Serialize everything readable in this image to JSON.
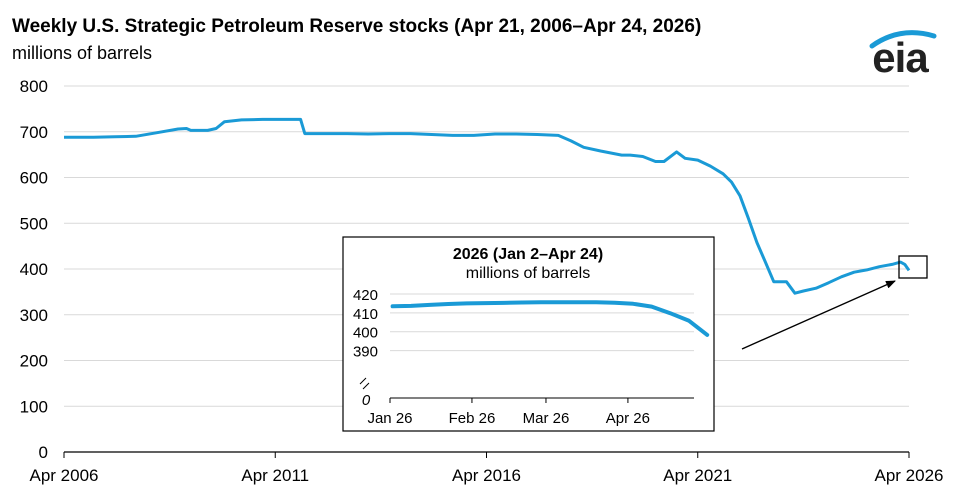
{
  "header": {
    "title": "Weekly U.S. Strategic Petroleum Reserve stocks (Apr 21, 2006–Apr 24, 2026)",
    "subtitle": "millions of barrels",
    "logo_text": "eia"
  },
  "colors": {
    "line": "#1a9ad6",
    "grid": "#d9d9d9",
    "axis": "#000000",
    "text": "#000000",
    "logo_arc": "#1a9ad6"
  },
  "chart_data": [
    {
      "type": "line",
      "title": "Weekly U.S. Strategic Petroleum Reserve stocks (Apr 21, 2006–Apr 24, 2026)",
      "ylabel": "millions of barrels",
      "ylim": [
        0,
        800
      ],
      "yticks": [
        0,
        100,
        200,
        300,
        400,
        500,
        600,
        700,
        800
      ],
      "xlim": [
        2006.3,
        2026.3
      ],
      "xticks": [
        {
          "value": 2006.3,
          "label": "Apr 2006"
        },
        {
          "value": 2011.3,
          "label": "Apr 2011"
        },
        {
          "value": 2016.3,
          "label": "Apr 2016"
        },
        {
          "value": 2021.3,
          "label": "Apr 2021"
        },
        {
          "value": 2026.3,
          "label": "Apr 2026"
        }
      ],
      "grid": true,
      "series": [
        {
          "points": [
            [
              2006.3,
              688
            ],
            [
              2007.0,
              688
            ],
            [
              2007.5,
              689
            ],
            [
              2008.0,
              690
            ],
            [
              2008.5,
              698
            ],
            [
              2009.0,
              706
            ],
            [
              2009.2,
              707
            ],
            [
              2009.3,
              703
            ],
            [
              2009.7,
              703
            ],
            [
              2009.9,
              707
            ],
            [
              2010.1,
              722
            ],
            [
              2010.5,
              726
            ],
            [
              2011.0,
              727
            ],
            [
              2011.6,
              727
            ],
            [
              2011.9,
              727
            ],
            [
              2012.0,
              696
            ],
            [
              2012.5,
              696
            ],
            [
              2013.0,
              696
            ],
            [
              2013.5,
              695
            ],
            [
              2014.0,
              696
            ],
            [
              2014.5,
              696
            ],
            [
              2015.0,
              694
            ],
            [
              2015.5,
              692
            ],
            [
              2016.0,
              692
            ],
            [
              2016.5,
              695
            ],
            [
              2017.0,
              695
            ],
            [
              2017.5,
              694
            ],
            [
              2018.0,
              692
            ],
            [
              2018.3,
              680
            ],
            [
              2018.6,
              666
            ],
            [
              2019.0,
              658
            ],
            [
              2019.5,
              649
            ],
            [
              2019.7,
              649
            ],
            [
              2020.0,
              646
            ],
            [
              2020.3,
              635
            ],
            [
              2020.5,
              635
            ],
            [
              2020.8,
              656
            ],
            [
              2021.0,
              642
            ],
            [
              2021.3,
              638
            ],
            [
              2021.6,
              625
            ],
            [
              2021.9,
              608
            ],
            [
              2022.1,
              590
            ],
            [
              2022.3,
              560
            ],
            [
              2022.5,
              510
            ],
            [
              2022.7,
              458
            ],
            [
              2022.9,
              415
            ],
            [
              2023.1,
              372
            ],
            [
              2023.4,
              372
            ],
            [
              2023.6,
              347
            ],
            [
              2023.8,
              352
            ],
            [
              2024.1,
              358
            ],
            [
              2024.4,
              370
            ],
            [
              2024.7,
              383
            ],
            [
              2025.0,
              393
            ],
            [
              2025.3,
              398
            ],
            [
              2025.6,
              405
            ],
            [
              2025.9,
              410
            ],
            [
              2026.1,
              415
            ],
            [
              2026.2,
              410
            ],
            [
              2026.3,
              397
            ]
          ]
        }
      ]
    },
    {
      "type": "line",
      "title": "2026 (Jan 2–Apr 24)",
      "ylabel": "millions of barrels",
      "ylim": [
        380,
        420
      ],
      "yticks": [
        390,
        400,
        410,
        420
      ],
      "ybreak_label": "0",
      "xticks": [
        {
          "value": 0,
          "label": "Jan 26"
        },
        {
          "value": 31,
          "label": "Feb 26"
        },
        {
          "value": 59,
          "label": "Mar 26"
        },
        {
          "value": 90,
          "label": "Apr 26"
        }
      ],
      "xlim": [
        0,
        115
      ],
      "grid": true,
      "series": [
        {
          "points": [
            [
              1,
              413.5
            ],
            [
              8,
              413.7
            ],
            [
              15,
              414.2
            ],
            [
              22,
              414.7
            ],
            [
              29,
              415.0
            ],
            [
              36,
              415.2
            ],
            [
              43,
              415.3
            ],
            [
              50,
              415.5
            ],
            [
              57,
              415.6
            ],
            [
              64,
              415.6
            ],
            [
              71,
              415.6
            ],
            [
              78,
              415.6
            ],
            [
              85,
              415.4
            ],
            [
              92,
              414.8
            ],
            [
              99,
              413.3
            ],
            [
              106,
              409.8
            ],
            [
              113,
              405.9
            ],
            [
              120,
              398.3
            ]
          ]
        }
      ]
    }
  ]
}
